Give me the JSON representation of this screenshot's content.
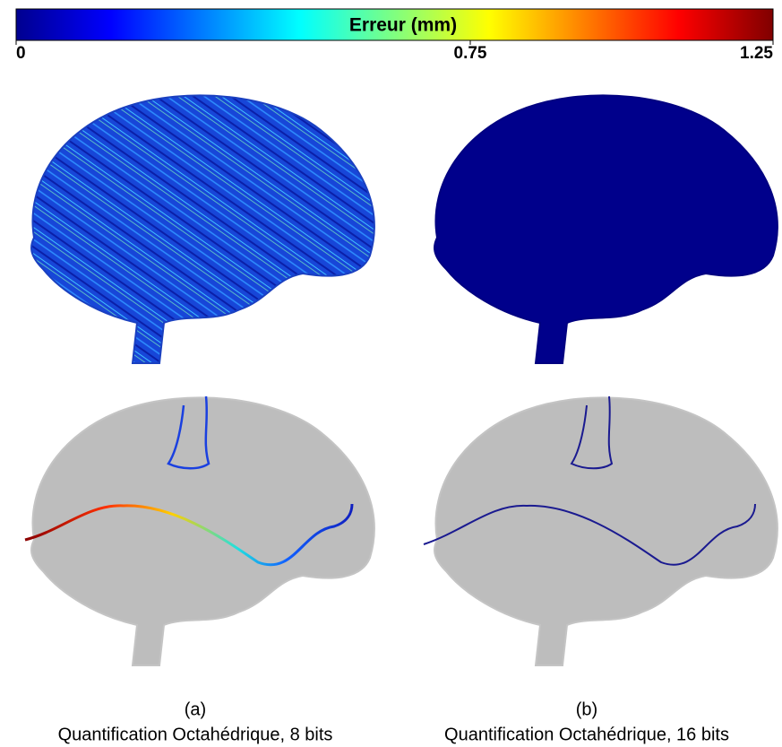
{
  "colorbar": {
    "title": "Erreur (mm)",
    "lim": [
      0,
      1.25
    ],
    "ticks": [
      0,
      0.75,
      1.25
    ]
  },
  "panels": [
    {
      "label": "(a)",
      "caption": "Quantification Octahédrique, 8 bits"
    },
    {
      "label": "(b)",
      "caption": "Quantification Octahédrique, 16 bits"
    }
  ]
}
